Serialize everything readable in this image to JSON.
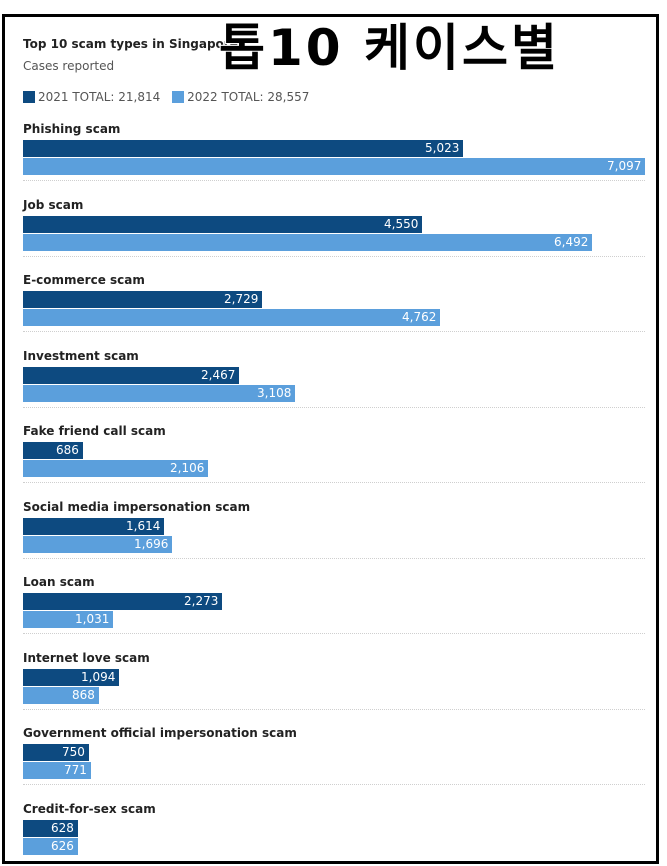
{
  "overlay_text": "톱10 케이스별",
  "chart_data": {
    "type": "bar",
    "orientation": "horizontal",
    "title": "Top 10 scam types in Singapore",
    "subtitle": "Cases reported",
    "categories": [
      "Phishing scam",
      "Job scam",
      "E-commerce scam",
      "Investment scam",
      "Fake friend call scam",
      "Social media impersonation scam",
      "Loan scam",
      "Internet love scam",
      "Government official impersonation scam",
      "Credit-for-sex scam"
    ],
    "series": [
      {
        "name": "2021 TOTAL: 21,814",
        "color": "#0d4a80",
        "values": [
          5023,
          4550,
          2729,
          2467,
          686,
          1614,
          2273,
          1094,
          750,
          628
        ],
        "labels": [
          "5,023",
          "4,550",
          "2,729",
          "2,467",
          "686",
          "1,614",
          "2,273",
          "1,094",
          "750",
          "628"
        ]
      },
      {
        "name": "2022 TOTAL: 28,557",
        "color": "#5b9fdc",
        "values": [
          7097,
          6492,
          4762,
          3108,
          2106,
          1696,
          1031,
          868,
          771,
          626
        ],
        "labels": [
          "7,097",
          "6,492",
          "4,762",
          "3,108",
          "2,106",
          "1,696",
          "1,031",
          "868",
          "771",
          "626"
        ]
      }
    ],
    "legend": "top-left",
    "grid": false
  }
}
